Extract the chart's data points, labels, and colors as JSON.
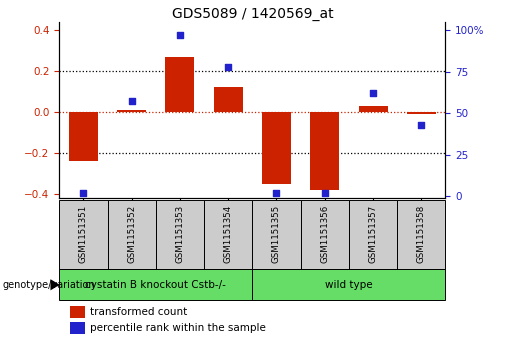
{
  "title": "GDS5089 / 1420569_at",
  "samples": [
    "GSM1151351",
    "GSM1151352",
    "GSM1151353",
    "GSM1151354",
    "GSM1151355",
    "GSM1151356",
    "GSM1151357",
    "GSM1151358"
  ],
  "bar_values": [
    -0.24,
    0.01,
    0.27,
    0.12,
    -0.35,
    -0.38,
    0.03,
    -0.01
  ],
  "dot_values": [
    2,
    57,
    97,
    78,
    2,
    2,
    62,
    43
  ],
  "bar_color": "#cc2200",
  "dot_color": "#2222cc",
  "ylim_left": [
    -0.42,
    0.44
  ],
  "ylim_right": [
    -1.05,
    105
  ],
  "yticks_left": [
    -0.4,
    -0.2,
    0.0,
    0.2,
    0.4
  ],
  "yticks_right": [
    0,
    25,
    50,
    75,
    100
  ],
  "ytick_labels_right": [
    "0",
    "25",
    "50",
    "75",
    "100%"
  ],
  "zero_line_color": "#cc2200",
  "grid_color": "black",
  "grid_values": [
    -0.2,
    0.0,
    0.2
  ],
  "group1_label": "cystatin B knockout Cstb-/-",
  "group2_label": "wild type",
  "group1_count": 4,
  "group2_count": 4,
  "group_color": "#66dd66",
  "group_label_text": "genotype/variation",
  "legend_bar_label": "transformed count",
  "legend_dot_label": "percentile rank within the sample",
  "title_fontsize": 10,
  "tick_label_fontsize": 7.5,
  "bar_width": 0.6,
  "sample_box_color": "#cccccc",
  "fig_bg": "#ffffff"
}
